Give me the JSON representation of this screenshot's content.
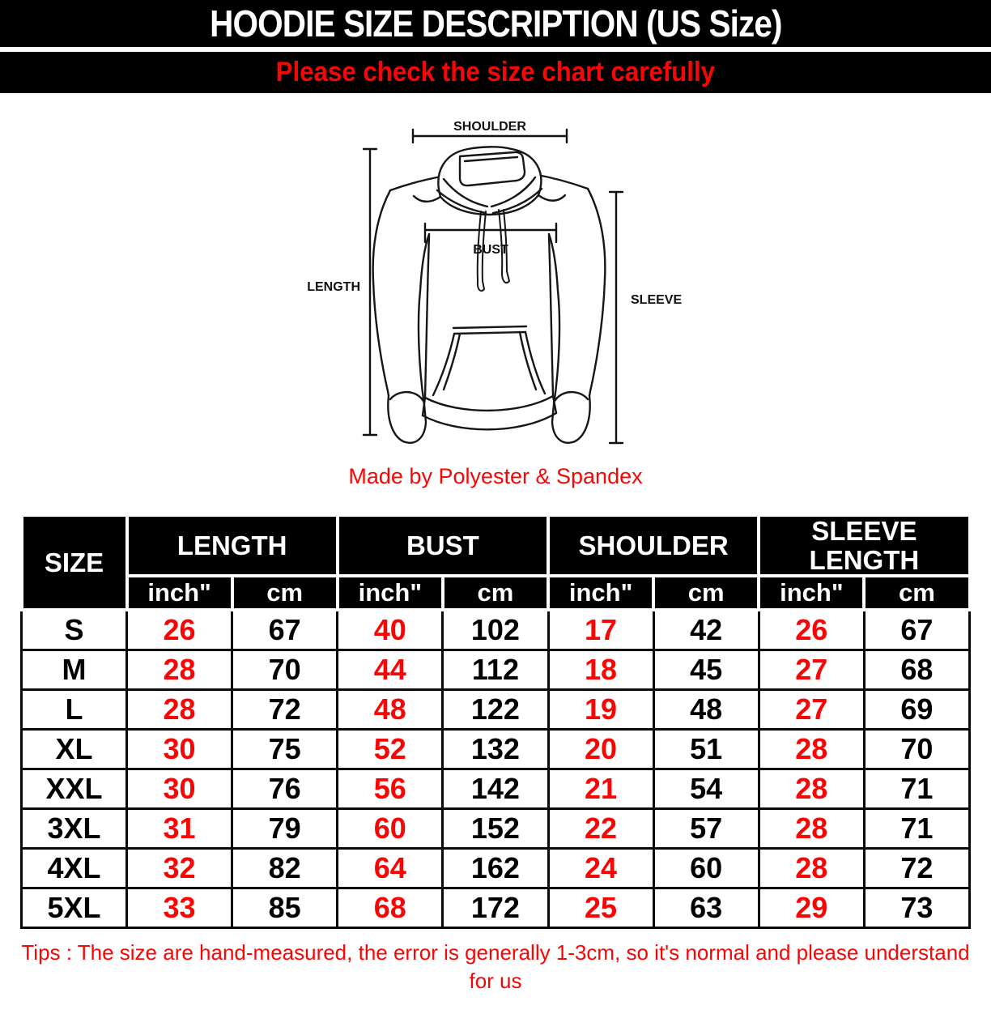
{
  "header": {
    "title": "HOODIE SIZE DESCRIPTION (US Size)",
    "subtitle": "Please check the size chart carefully"
  },
  "diagram": {
    "shoulder_label": "SHOULDER",
    "length_label": "LENGTH",
    "bust_label": "BUST",
    "sleeve_label": "SLEEVE",
    "material_note": "Made by Polyester & Spandex"
  },
  "table": {
    "size_header": "SIZE",
    "groups": [
      "LENGTH",
      "BUST",
      "SHOULDER",
      "SLEEVE LENGTH"
    ],
    "unit_headers": [
      "inch\"",
      "cm"
    ],
    "rows": [
      {
        "size": "S",
        "values": [
          "26",
          "67",
          "40",
          "102",
          "17",
          "42",
          "26",
          "67"
        ]
      },
      {
        "size": "M",
        "values": [
          "28",
          "70",
          "44",
          "112",
          "18",
          "45",
          "27",
          "68"
        ]
      },
      {
        "size": "L",
        "values": [
          "28",
          "72",
          "48",
          "122",
          "19",
          "48",
          "27",
          "69"
        ]
      },
      {
        "size": "XL",
        "values": [
          "30",
          "75",
          "52",
          "132",
          "20",
          "51",
          "28",
          "70"
        ]
      },
      {
        "size": "XXL",
        "values": [
          "30",
          "76",
          "56",
          "142",
          "21",
          "54",
          "28",
          "71"
        ]
      },
      {
        "size": "3XL",
        "values": [
          "31",
          "79",
          "60",
          "152",
          "22",
          "57",
          "28",
          "71"
        ]
      },
      {
        "size": "4XL",
        "values": [
          "32",
          "82",
          "64",
          "162",
          "24",
          "60",
          "28",
          "72"
        ]
      },
      {
        "size": "5XL",
        "values": [
          "33",
          "85",
          "68",
          "172",
          "25",
          "63",
          "29",
          "73"
        ]
      }
    ]
  },
  "tips": {
    "text": "Tips : The size are hand-measured, the error is generally 1-3cm, so it's normal and please understand for us"
  },
  "colors": {
    "red": "#fa0505",
    "bar_bg": "#000000",
    "grid": "#0a0a0a"
  }
}
